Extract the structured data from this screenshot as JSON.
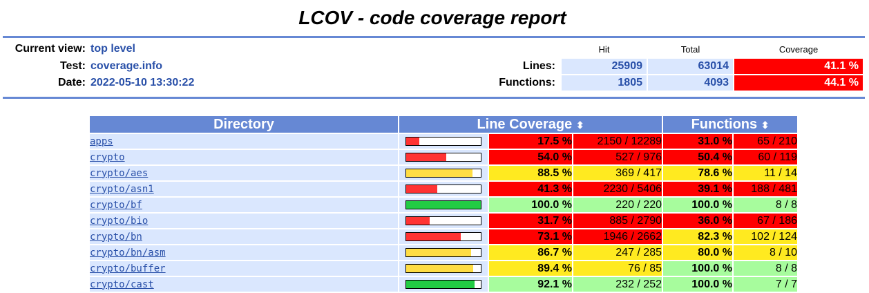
{
  "title": "LCOV - code coverage report",
  "info": {
    "current_view_label": "Current view:",
    "current_view_value": "top level",
    "test_label": "Test:",
    "test_value": "coverage.info",
    "date_label": "Date:",
    "date_value": "2022-05-10 13:30:22"
  },
  "summary": {
    "hit_header": "Hit",
    "total_header": "Total",
    "coverage_header": "Coverage",
    "lines_label": "Lines:",
    "lines_hit": "25909",
    "lines_total": "63014",
    "lines_coverage": "41.1 %",
    "functions_label": "Functions:",
    "functions_hit": "1805",
    "functions_total": "4093",
    "functions_coverage": "44.1 %"
  },
  "table": {
    "directory_header": "Directory",
    "line_coverage_header": "Line Coverage",
    "functions_header": "Functions",
    "sort_icon": "⬍",
    "rows": [
      {
        "name": "apps",
        "bar": 0.175,
        "bar_color": "#ff3333",
        "line_pct": "17.5 %",
        "line_num": "2150 / 12289",
        "line_class": "lo",
        "func_pct": "31.0 %",
        "func_num": "65 / 210",
        "func_class": "lo"
      },
      {
        "name": "crypto",
        "bar": 0.54,
        "bar_color": "#ff3333",
        "line_pct": "54.0 %",
        "line_num": "527 / 976",
        "line_class": "lo",
        "func_pct": "50.4 %",
        "func_num": "60 / 119",
        "func_class": "lo"
      },
      {
        "name": "crypto/aes",
        "bar": 0.885,
        "bar_color": "#ffdd44",
        "line_pct": "88.5 %",
        "line_num": "369 / 417",
        "line_class": "med",
        "func_pct": "78.6 %",
        "func_num": "11 / 14",
        "func_class": "med"
      },
      {
        "name": "crypto/asn1",
        "bar": 0.413,
        "bar_color": "#ff3333",
        "line_pct": "41.3 %",
        "line_num": "2230 / 5406",
        "line_class": "lo",
        "func_pct": "39.1 %",
        "func_num": "188 / 481",
        "func_class": "lo"
      },
      {
        "name": "crypto/bf",
        "bar": 1.0,
        "bar_color": "#22cc44",
        "line_pct": "100.0 %",
        "line_num": "220 / 220",
        "line_class": "hi",
        "func_pct": "100.0 %",
        "func_num": "8 / 8",
        "func_class": "hi"
      },
      {
        "name": "crypto/bio",
        "bar": 0.317,
        "bar_color": "#ff3333",
        "line_pct": "31.7 %",
        "line_num": "885 / 2790",
        "line_class": "lo",
        "func_pct": "36.0 %",
        "func_num": "67 / 186",
        "func_class": "lo"
      },
      {
        "name": "crypto/bn",
        "bar": 0.731,
        "bar_color": "#ff3333",
        "line_pct": "73.1 %",
        "line_num": "1946 / 2662",
        "line_class": "lo",
        "func_pct": "82.3 %",
        "func_num": "102 / 124",
        "func_class": "med"
      },
      {
        "name": "crypto/bn/asm",
        "bar": 0.867,
        "bar_color": "#ffdd44",
        "line_pct": "86.7 %",
        "line_num": "247 / 285",
        "line_class": "med",
        "func_pct": "80.0 %",
        "func_num": "8 / 10",
        "func_class": "med"
      },
      {
        "name": "crypto/buffer",
        "bar": 0.894,
        "bar_color": "#ffdd44",
        "line_pct": "89.4 %",
        "line_num": "76 / 85",
        "line_class": "med",
        "func_pct": "100.0 %",
        "func_num": "8 / 8",
        "func_class": "hi"
      },
      {
        "name": "crypto/cast",
        "bar": 0.921,
        "bar_color": "#22cc44",
        "line_pct": "92.1 %",
        "line_num": "232 / 252",
        "line_class": "hi",
        "func_pct": "100.0 %",
        "func_num": "7 / 7",
        "func_class": "hi"
      }
    ]
  },
  "colors": {
    "lo_bg": "#ff0000",
    "lo_text": "#ffffff",
    "med_bg": "#ffea20",
    "med_text": "#000000",
    "hi_bg": "#a7fc9d",
    "hi_text": "#000000",
    "lo_num_text": "#000000"
  }
}
